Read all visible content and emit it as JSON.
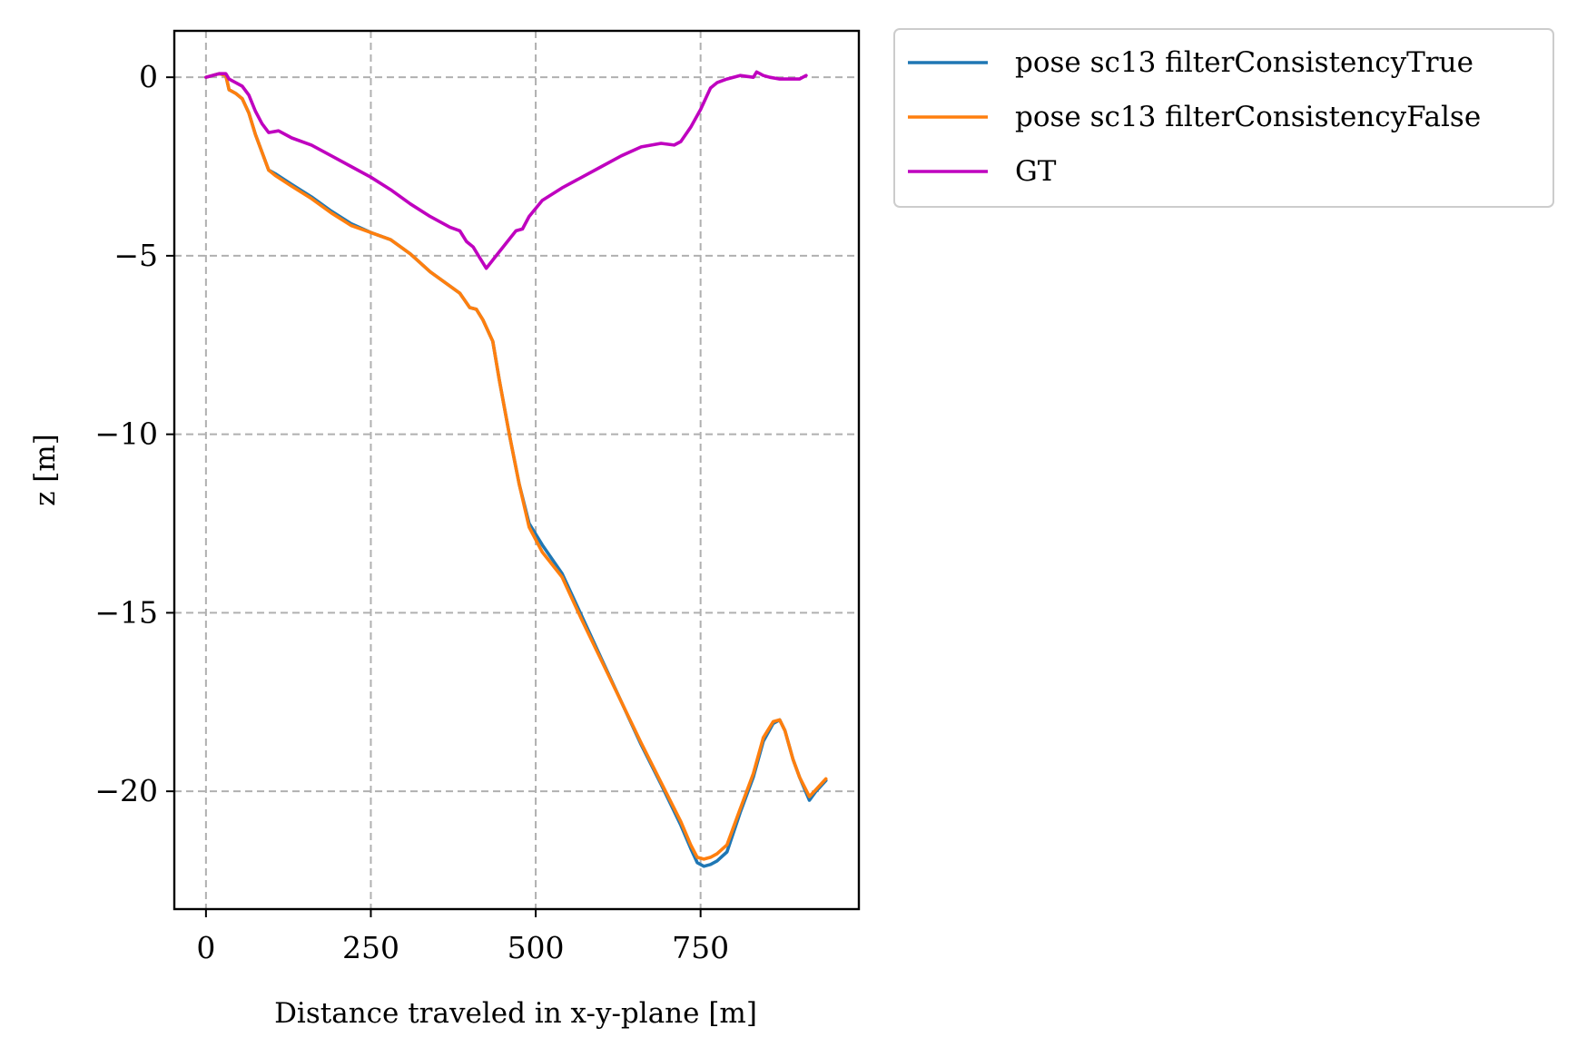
{
  "chart_data": {
    "type": "line",
    "title": "",
    "xlabel": "Distance traveled in x-y-plane [m]",
    "ylabel": "z [m]",
    "xlim": [
      -48,
      990
    ],
    "ylim": [
      -23.3,
      1.3
    ],
    "xticks": [
      0,
      250,
      500,
      750
    ],
    "xtick_labels": [
      "0",
      "250",
      "500",
      "750"
    ],
    "yticks": [
      0,
      -5,
      -10,
      -15,
      -20
    ],
    "ytick_labels": [
      "0",
      "−5",
      "−10",
      "−15",
      "−20"
    ],
    "grid": true,
    "legend_position": "outside-top-right",
    "series": [
      {
        "name": "pose sc13 filterConsistencyTrue",
        "color": "#1f77b4",
        "x": [
          0,
          10,
          20,
          30,
          35,
          45,
          55,
          65,
          75,
          85,
          95,
          105,
          130,
          160,
          190,
          220,
          250,
          280,
          310,
          340,
          370,
          385,
          400,
          410,
          420,
          435,
          445,
          460,
          475,
          490,
          510,
          540,
          570,
          600,
          630,
          660,
          690,
          720,
          735,
          745,
          755,
          765,
          775,
          790,
          810,
          830,
          845,
          860,
          870,
          878,
          890,
          900,
          915,
          925,
          940
        ],
        "y": [
          0.0,
          0.05,
          0.1,
          0.05,
          -0.35,
          -0.45,
          -0.6,
          -1.0,
          -1.6,
          -2.1,
          -2.6,
          -2.7,
          -3.0,
          -3.35,
          -3.75,
          -4.1,
          -4.35,
          -4.55,
          -4.95,
          -5.45,
          -5.85,
          -6.05,
          -6.45,
          -6.5,
          -6.8,
          -7.4,
          -8.5,
          -10.0,
          -11.4,
          -12.5,
          -13.1,
          -13.9,
          -15.1,
          -16.3,
          -17.5,
          -18.7,
          -19.8,
          -20.95,
          -21.6,
          -22.0,
          -22.1,
          -22.05,
          -21.95,
          -21.7,
          -20.6,
          -19.6,
          -18.6,
          -18.1,
          -18.0,
          -18.3,
          -19.1,
          -19.6,
          -20.25,
          -20.0,
          -19.7
        ]
      },
      {
        "name": "pose sc13 filterConsistencyFalse",
        "color": "#ff7f0e",
        "x": [
          0,
          10,
          20,
          30,
          35,
          45,
          55,
          65,
          75,
          85,
          95,
          105,
          130,
          160,
          190,
          220,
          250,
          280,
          310,
          340,
          370,
          385,
          400,
          410,
          420,
          435,
          445,
          460,
          475,
          490,
          510,
          540,
          570,
          600,
          630,
          660,
          690,
          720,
          735,
          745,
          755,
          765,
          775,
          790,
          810,
          830,
          845,
          860,
          870,
          878,
          890,
          900,
          915,
          925,
          940
        ],
        "y": [
          0.0,
          0.05,
          0.1,
          0.05,
          -0.35,
          -0.45,
          -0.6,
          -1.0,
          -1.6,
          -2.1,
          -2.6,
          -2.75,
          -3.05,
          -3.4,
          -3.8,
          -4.15,
          -4.35,
          -4.55,
          -4.95,
          -5.45,
          -5.85,
          -6.05,
          -6.45,
          -6.5,
          -6.8,
          -7.4,
          -8.5,
          -10.0,
          -11.4,
          -12.6,
          -13.3,
          -14.0,
          -15.2,
          -16.35,
          -17.5,
          -18.65,
          -19.75,
          -20.85,
          -21.5,
          -21.85,
          -21.9,
          -21.85,
          -21.75,
          -21.5,
          -20.5,
          -19.5,
          -18.5,
          -18.05,
          -18.0,
          -18.3,
          -19.1,
          -19.6,
          -20.15,
          -19.95,
          -19.65
        ]
      },
      {
        "name": "GT",
        "color": "#bf00bf",
        "x": [
          0,
          10,
          20,
          30,
          35,
          45,
          55,
          65,
          75,
          85,
          95,
          110,
          130,
          160,
          190,
          220,
          250,
          280,
          310,
          340,
          370,
          385,
          395,
          405,
          415,
          425,
          440,
          455,
          470,
          480,
          490,
          510,
          540,
          570,
          600,
          630,
          660,
          690,
          710,
          720,
          735,
          750,
          765,
          775,
          790,
          810,
          830,
          835,
          840,
          845,
          855,
          870,
          885,
          900,
          910
        ],
        "y": [
          0.0,
          0.05,
          0.1,
          0.1,
          -0.05,
          -0.15,
          -0.25,
          -0.5,
          -0.95,
          -1.3,
          -1.55,
          -1.5,
          -1.7,
          -1.9,
          -2.2,
          -2.5,
          -2.8,
          -3.15,
          -3.55,
          -3.9,
          -4.2,
          -4.3,
          -4.6,
          -4.75,
          -5.05,
          -5.35,
          -5.0,
          -4.65,
          -4.3,
          -4.25,
          -3.9,
          -3.45,
          -3.1,
          -2.8,
          -2.5,
          -2.2,
          -1.95,
          -1.85,
          -1.9,
          -1.8,
          -1.4,
          -0.9,
          -0.3,
          -0.15,
          -0.05,
          0.05,
          0.0,
          0.15,
          0.1,
          0.05,
          0.0,
          -0.05,
          -0.05,
          -0.05,
          0.05
        ]
      }
    ]
  }
}
